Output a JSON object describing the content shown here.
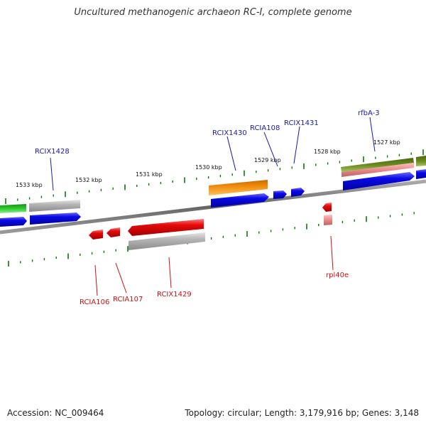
{
  "title": "Uncultured methanogenic archaeon RC-I, complete genome",
  "footer": {
    "accession": "Accession: NC_009464",
    "summary": "Topology: circular; Length: 3,179,916 bp; Genes: 3,148"
  },
  "ticks": [
    "1533 kbp",
    "1532 kbp",
    "1531 kbp",
    "1530 kbp",
    "1529 kbp",
    "1528 kbp",
    "1527 kbp"
  ],
  "genes_top": [
    "RCIX1428",
    "RCIX1430",
    "RCIA108",
    "RCIX1431",
    "rfbA-3"
  ],
  "genes_bottom": [
    "RCIA106",
    "RCIA107",
    "RCIX1429",
    "rpl40e"
  ],
  "colors": {
    "forward_label": "#1a1aa8",
    "reverse_label": "#cc1111",
    "tick": "#0a7a0a",
    "backbone": "#777777",
    "blue": "#0a0ae6",
    "red": "#e60a0a",
    "gray": "#b4b4b4",
    "orange": "#f08a0a",
    "green": "#2ecc2e",
    "olive": "#6b8a1e",
    "pink": "#e88a8a"
  }
}
